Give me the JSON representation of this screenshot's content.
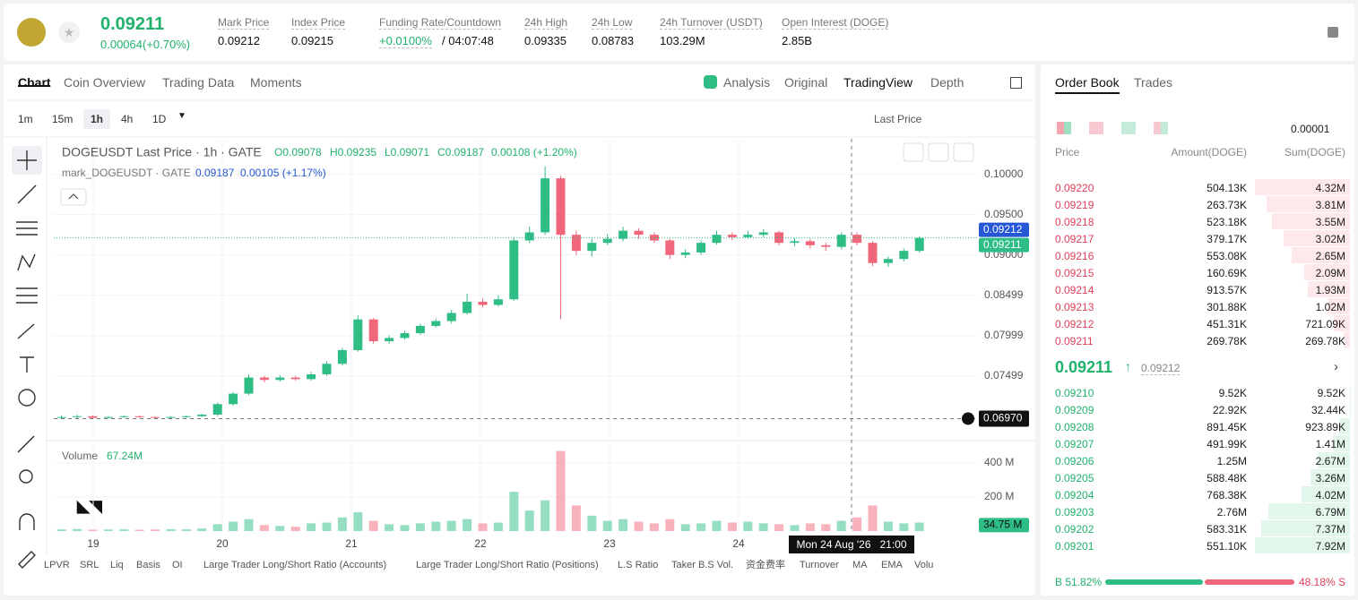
{
  "header": {
    "price": "0.09211",
    "change": "0.00064(+0.70%)",
    "stats": [
      {
        "label": "Mark Price",
        "value": "0.09212"
      },
      {
        "label": "Index Price",
        "value": "0.09215"
      },
      {
        "label": "Funding Rate/Countdown",
        "value": "+0.0100%",
        "extra": "/ 04:07:48"
      },
      {
        "label": "24h High",
        "value": "0.09335"
      },
      {
        "label": "24h Low",
        "value": "0.08783"
      },
      {
        "label": "24h Turnover (USDT)",
        "value": "103.29M"
      },
      {
        "label": "Open Interest (DOGE)",
        "value": "2.85B"
      }
    ]
  },
  "tabs": [
    "Chart",
    "Coin Overview",
    "Trading Data",
    "Moments"
  ],
  "view_tabs": [
    "Analysis",
    "Original",
    "TradingView",
    "Depth"
  ],
  "toolbar": {
    "intervals": [
      "1m",
      "15m",
      "1h",
      "4h",
      "1D"
    ],
    "price_type": "Last Price"
  },
  "chart_data": {
    "type": "candlestick",
    "title": "DOGEUSDT Last Price · 1h · GATE",
    "ohlc_legend": [
      "O0.09078",
      "H0.09235",
      "L0.09071",
      "C0.09187",
      "0.00108 (+1.20%)"
    ],
    "mark_legend": "mark_DOGEUSDT · GATE",
    "mark_values": [
      "0.09187",
      "0.00105 (+1.17%)"
    ],
    "up_color": "#2ebd85",
    "down_color": "#f0667a",
    "open": [
      0.0698,
      0.0699,
      0.07,
      0.0698,
      0.0699,
      0.07,
      0.0699,
      0.0698,
      0.0699,
      0.07,
      0.0702,
      0.0715,
      0.0728,
      0.0748,
      0.0745,
      0.0748,
      0.0746,
      0.0752,
      0.0765,
      0.0782,
      0.082,
      0.0793,
      0.0797,
      0.0803,
      0.0812,
      0.0818,
      0.0828,
      0.0842,
      0.0838,
      0.0845,
      0.0918,
      0.0928,
      0.0995,
      0.0925,
      0.0905,
      0.0915,
      0.092,
      0.093,
      0.0925,
      0.0918,
      0.09,
      0.0903,
      0.0915,
      0.0925,
      0.0922,
      0.0925,
      0.0928,
      0.0915,
      0.0917,
      0.0912,
      0.091,
      0.0925,
      0.0915,
      0.089,
      0.0895,
      0.0905
    ],
    "high": [
      0.0701,
      0.0702,
      0.0701,
      0.07,
      0.0701,
      0.0701,
      0.07,
      0.07,
      0.0701,
      0.0703,
      0.0717,
      0.073,
      0.0752,
      0.075,
      0.0751,
      0.075,
      0.0755,
      0.0768,
      0.0785,
      0.0825,
      0.0822,
      0.08,
      0.0806,
      0.0815,
      0.0821,
      0.0832,
      0.0852,
      0.0846,
      0.085,
      0.0922,
      0.0935,
      0.101,
      0.0998,
      0.093,
      0.092,
      0.0926,
      0.0935,
      0.0933,
      0.0928,
      0.092,
      0.0907,
      0.0918,
      0.093,
      0.0928,
      0.093,
      0.0932,
      0.093,
      0.0921,
      0.092,
      0.0915,
      0.0928,
      0.0928,
      0.0917,
      0.0898,
      0.0908,
      0.0923
    ],
    "low": [
      0.0697,
      0.0697,
      0.0697,
      0.0697,
      0.0698,
      0.0698,
      0.0697,
      0.0697,
      0.0698,
      0.0699,
      0.07,
      0.0713,
      0.0726,
      0.0742,
      0.0743,
      0.0744,
      0.0744,
      0.075,
      0.0763,
      0.078,
      0.079,
      0.079,
      0.0795,
      0.0801,
      0.081,
      0.0815,
      0.0826,
      0.0835,
      0.0836,
      0.0843,
      0.0915,
      0.0925,
      0.082,
      0.09,
      0.0898,
      0.0912,
      0.0917,
      0.092,
      0.0915,
      0.0895,
      0.0896,
      0.09,
      0.0913,
      0.0918,
      0.092,
      0.0922,
      0.0912,
      0.0911,
      0.0908,
      0.0905,
      0.0907,
      0.0912,
      0.0886,
      0.0885,
      0.0892,
      0.0903
    ],
    "close": [
      0.0699,
      0.07,
      0.0698,
      0.0699,
      0.07,
      0.0699,
      0.0698,
      0.0699,
      0.07,
      0.0702,
      0.0715,
      0.0728,
      0.0748,
      0.0745,
      0.0748,
      0.0746,
      0.0752,
      0.0765,
      0.0782,
      0.082,
      0.0793,
      0.0797,
      0.0803,
      0.0812,
      0.0818,
      0.0828,
      0.0842,
      0.0838,
      0.0845,
      0.0918,
      0.0928,
      0.0995,
      0.0925,
      0.0905,
      0.0915,
      0.092,
      0.093,
      0.0925,
      0.0918,
      0.09,
      0.0903,
      0.0915,
      0.0925,
      0.0922,
      0.0925,
      0.0928,
      0.0915,
      0.0917,
      0.0912,
      0.091,
      0.0925,
      0.0915,
      0.089,
      0.0895,
      0.0905,
      0.0921
    ],
    "ylim": [
      0.0672,
      0.1044
    ],
    "yticks": [
      {
        "value": 0.1,
        "label": "0.10000"
      },
      {
        "value": 0.095,
        "label": "0.09500"
      },
      {
        "value": 0.09,
        "label": "0.09000"
      },
      0.08499,
      0.07999,
      0.07499
    ],
    "xticks": [
      "19",
      "20",
      "21",
      "22",
      "23",
      "24"
    ],
    "price_badges": [
      {
        "value": 0.09212,
        "color": "#2456d6"
      },
      {
        "value": 0.09211,
        "color": "#2ebd85"
      }
    ],
    "crosshair": {
      "value": 0.0697,
      "label": "0.06970",
      "time": "Mon 24 Aug '26   21:00"
    },
    "volume": {
      "name": "Volume",
      "legend_value": "67.24M",
      "values": [
        10,
        12,
        8,
        9,
        10,
        8,
        9,
        11,
        10,
        15,
        40,
        55,
        70,
        35,
        30,
        25,
        45,
        50,
        80,
        110,
        60,
        40,
        35,
        45,
        55,
        60,
        70,
        45,
        50,
        230,
        120,
        180,
        470,
        150,
        90,
        60,
        70,
        55,
        45,
        70,
        40,
        45,
        60,
        50,
        55,
        45,
        40,
        35,
        45,
        40,
        60,
        80,
        150,
        55,
        45,
        50
      ],
      "ylim": [
        0,
        515
      ],
      "yticks": [
        {
          "value": 400,
          "label": "400 M"
        },
        {
          "value": 200,
          "label": "200 M"
        }
      ],
      "last": {
        "value": 34.75,
        "label": "34.75 M"
      }
    }
  },
  "indicators": [
    "LPVR",
    "SRL",
    "Liq",
    "Basis",
    "OI",
    "Large Trader Long/Short Ratio (Accounts)",
    "Large Trader Long/Short Ratio (Positions)",
    "L.S Ratio",
    "Taker B.S Vol.",
    "资金费率",
    "Turnover",
    "MA",
    "EMA",
    "Volu"
  ],
  "order_book": {
    "tabs": [
      "Order Book",
      "Trades"
    ],
    "precision": "0.00001",
    "columns": [
      "Price",
      "Amount(DOGE)",
      "Sum(DOGE)"
    ],
    "asks": [
      {
        "price": "0.09220",
        "amount": "504.13K",
        "sum": 4320000,
        "sum_label": "4.32M"
      },
      {
        "price": "0.09219",
        "amount": "263.73K",
        "sum": 3810000,
        "sum_label": "3.81M"
      },
      {
        "price": "0.09218",
        "amount": "523.18K",
        "sum": 3550000,
        "sum_label": "3.55M"
      },
      {
        "price": "0.09217",
        "amount": "379.17K",
        "sum": 3020000,
        "sum_label": "3.02M"
      },
      {
        "price": "0.09216",
        "amount": "553.08K",
        "sum": 2650000,
        "sum_label": "2.65M"
      },
      {
        "price": "0.09215",
        "amount": "160.69K",
        "sum": 2090000,
        "sum_label": "2.09M"
      },
      {
        "price": "0.09214",
        "amount": "913.57K",
        "sum": 1930000,
        "sum_label": "1.93M"
      },
      {
        "price": "0.09213",
        "amount": "301.88K",
        "sum": 1020000,
        "sum_label": "1.02M"
      },
      {
        "price": "0.09212",
        "amount": "451.31K",
        "sum": 721090,
        "sum_label": "721.09K"
      },
      {
        "price": "0.09211",
        "amount": "269.78K",
        "sum": 269780,
        "sum_label": "269.78K"
      }
    ],
    "mid": {
      "price": "0.09211",
      "mark": "0.09212"
    },
    "bids": [
      {
        "price": "0.09210",
        "amount": "9.52K",
        "sum": 9520,
        "sum_label": "9.52K"
      },
      {
        "price": "0.09209",
        "amount": "22.92K",
        "sum": 32440,
        "sum_label": "32.44K"
      },
      {
        "price": "0.09208",
        "amount": "891.45K",
        "sum": 923890,
        "sum_label": "923.89K"
      },
      {
        "price": "0.09207",
        "amount": "491.99K",
        "sum": 1410000,
        "sum_label": "1.41M"
      },
      {
        "price": "0.09206",
        "amount": "1.25M",
        "sum": 2670000,
        "sum_label": "2.67M"
      },
      {
        "price": "0.09205",
        "amount": "588.48K",
        "sum": 3260000,
        "sum_label": "3.26M"
      },
      {
        "price": "0.09204",
        "amount": "768.38K",
        "sum": 4020000,
        "sum_label": "4.02M"
      },
      {
        "price": "0.09203",
        "amount": "2.76M",
        "sum": 6790000,
        "sum_label": "6.79M"
      },
      {
        "price": "0.09202",
        "amount": "583.31K",
        "sum": 7370000,
        "sum_label": "7.37M"
      },
      {
        "price": "0.09201",
        "amount": "551.10K",
        "sum": 7920000,
        "sum_label": "7.92M"
      }
    ],
    "ratio": {
      "values": [
        51.82,
        48.18
      ],
      "value_labels": [
        "B 51.82%",
        "48.18% S"
      ]
    }
  }
}
